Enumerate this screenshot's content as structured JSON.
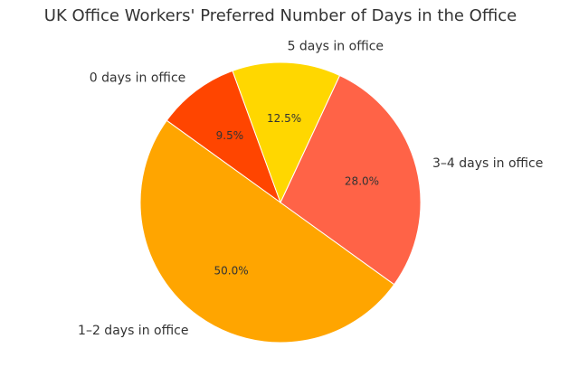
{
  "chart_data": {
    "type": "pie",
    "title": "UK Office Workers' Preferred Number of Days in the Office",
    "categories": [
      "0 days in office",
      "1–2 days in office",
      "3–4 days in office",
      "5 days in office"
    ],
    "values": [
      9.5,
      50.0,
      28.0,
      12.5
    ],
    "value_labels": [
      "9.5%",
      "50.0%",
      "28.0%",
      "12.5%"
    ],
    "colors": [
      "#FF4500",
      "#FFA500",
      "#FF6347",
      "#FFD700"
    ],
    "start_angle_deg": 110,
    "direction": "counterclockwise",
    "legend": "none"
  }
}
